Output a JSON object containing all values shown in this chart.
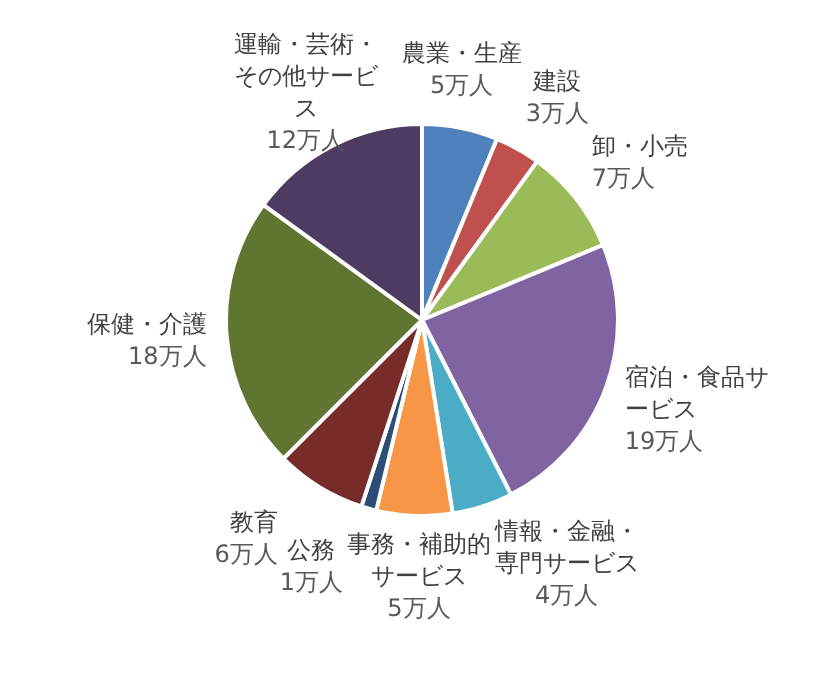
{
  "chart_data": {
    "type": "pie",
    "categories": [
      "農業・生産",
      "建設",
      "卸・小売",
      "宿泊・食品サービス",
      "情報・金融・専門サービス",
      "事務・補助的サービス",
      "公務",
      "教育",
      "保健・介護",
      "運輸・芸術・その他サービス"
    ],
    "values": [
      5,
      3,
      7,
      19,
      4,
      5,
      1,
      6,
      18,
      12
    ],
    "value_labels": [
      "5万人",
      "3万人",
      "7万人",
      "19万人",
      "4万人",
      "5万人",
      "1万人",
      "6万人",
      "18万人",
      "12万人"
    ],
    "colors": [
      "#4f81bd",
      "#c0504d",
      "#9bbb59",
      "#8064a2",
      "#4bacc6",
      "#f79646",
      "#2c4d75",
      "#772c2a",
      "#5f7530",
      "#4d3b62"
    ]
  }
}
